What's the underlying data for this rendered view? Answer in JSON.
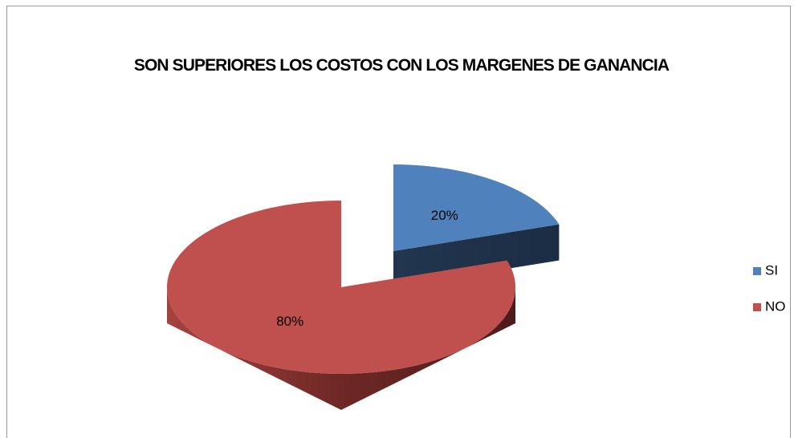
{
  "chart_data": {
    "type": "pie",
    "title": "SON SUPERIORES LOS COSTOS CON LOS MARGENES DE GANANCIA",
    "categories": [
      "SI",
      "NO"
    ],
    "values": [
      20,
      80
    ],
    "value_labels": [
      "20%",
      "80%"
    ],
    "colors": [
      "#4f81bd",
      "#c0504d"
    ],
    "legend": "right"
  }
}
